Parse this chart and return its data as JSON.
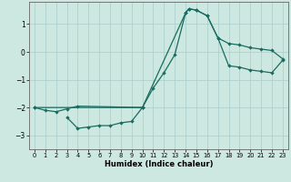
{
  "xlabel": "Humidex (Indice chaleur)",
  "bg_color": "#cce8e0",
  "grid_color": "#aacccc",
  "line_color": "#1a6b60",
  "xlim": [
    -0.5,
    23.5
  ],
  "ylim": [
    -3.5,
    1.8
  ],
  "xticks": [
    0,
    1,
    2,
    3,
    4,
    5,
    6,
    7,
    8,
    9,
    10,
    11,
    12,
    13,
    14,
    15,
    16,
    17,
    18,
    19,
    20,
    21,
    22,
    23
  ],
  "yticks": [
    -3,
    -2,
    -1,
    0,
    1
  ],
  "line1_x": [
    0,
    1,
    2,
    3,
    4,
    10,
    11,
    12,
    13,
    14,
    14.3,
    15,
    16,
    17,
    18,
    19,
    20,
    21,
    22,
    23
  ],
  "line1_y": [
    -2.0,
    -2.1,
    -2.15,
    -2.05,
    -1.95,
    -2.0,
    -1.3,
    -0.75,
    -0.1,
    1.4,
    1.55,
    1.5,
    1.3,
    0.5,
    0.3,
    0.25,
    0.15,
    0.1,
    0.05,
    -0.25
  ],
  "line2_x": [
    3,
    4,
    5,
    6,
    7,
    8,
    9,
    10
  ],
  "line2_y": [
    -2.35,
    -2.75,
    -2.7,
    -2.65,
    -2.65,
    -2.55,
    -2.5,
    -2.0
  ],
  "line3_x": [
    0,
    10,
    14,
    14.3,
    15,
    16,
    17,
    18,
    19,
    20,
    21,
    22,
    23
  ],
  "line3_y": [
    -2.0,
    -2.0,
    1.4,
    1.55,
    1.5,
    1.3,
    0.5,
    -0.5,
    -0.55,
    -0.65,
    -0.7,
    -0.75,
    -0.3
  ],
  "xlabel_fontsize": 6.0,
  "ytick_fontsize": 5.5,
  "xtick_fontsize": 4.8,
  "marker_size": 2.2,
  "linewidth": 0.9
}
